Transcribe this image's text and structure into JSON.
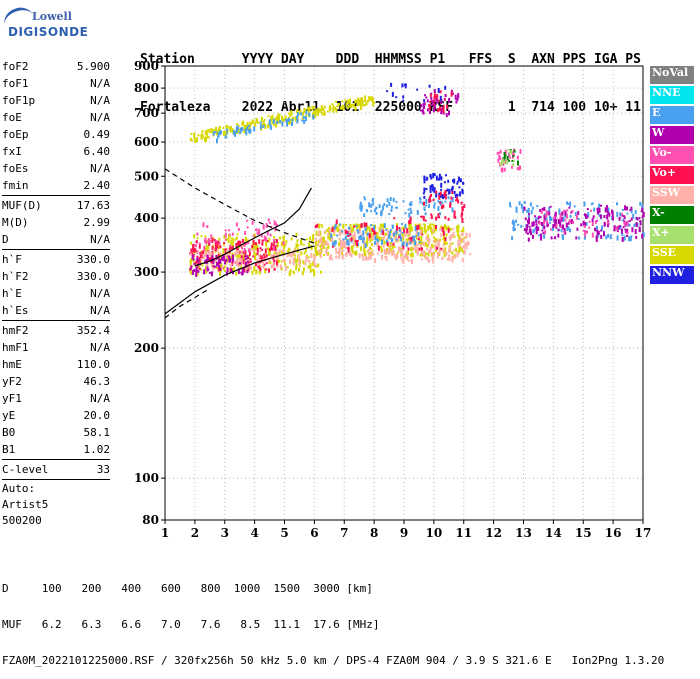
{
  "logo": {
    "line1": "Lowell",
    "line2": "DIGISONDE"
  },
  "header": {
    "columns": [
      "Station",
      "YYYY",
      "DAY",
      "DDD",
      "HHMMSS",
      "P1",
      "FFS",
      "S",
      "AXN",
      "PPS",
      "IGA",
      "PS"
    ],
    "values": [
      "Fortaleza",
      "2022",
      "Abr11",
      "101",
      "225000",
      "RSF",
      "",
      "1",
      "714",
      "100",
      "10+",
      "11"
    ]
  },
  "params": [
    {
      "label": "foF2",
      "value": "5.900"
    },
    {
      "label": "foF1",
      "value": "N/A"
    },
    {
      "label": "foF1p",
      "value": "N/A"
    },
    {
      "label": "foE",
      "value": "N/A"
    },
    {
      "label": "foEp",
      "value": "0.49"
    },
    {
      "label": "fxI",
      "value": "6.40"
    },
    {
      "label": "foEs",
      "value": "N/A"
    },
    {
      "label": "fmin",
      "value": "2.40"
    },
    {
      "sep": true
    },
    {
      "label": "MUF(D)",
      "value": "17.63"
    },
    {
      "label": "M(D)",
      "value": "2.99"
    },
    {
      "label": "D",
      "value": "N/A"
    },
    {
      "sep": true
    },
    {
      "label": "h`F",
      "value": "330.0"
    },
    {
      "label": "h`F2",
      "value": "330.0"
    },
    {
      "label": "h`E",
      "value": "N/A"
    },
    {
      "label": "h`Es",
      "value": "N/A"
    },
    {
      "sep": true
    },
    {
      "label": "hmF2",
      "value": "352.4"
    },
    {
      "label": "hmF1",
      "value": "N/A"
    },
    {
      "label": "hmE",
      "value": "110.0"
    },
    {
      "label": "yF2",
      "value": "46.3"
    },
    {
      "label": "yF1",
      "value": "N/A"
    },
    {
      "label": "yE",
      "value": "20.0"
    },
    {
      "label": "B0",
      "value": "58.1"
    },
    {
      "label": "B1",
      "value": "1.02"
    },
    {
      "sep": true
    },
    {
      "label": "C-level",
      "value": "33"
    },
    {
      "sep": true
    },
    {
      "text": "Auto:"
    },
    {
      "text": "Artist5"
    },
    {
      "text": "500200"
    }
  ],
  "legend": [
    {
      "label": "NoVal",
      "color": "#808080"
    },
    {
      "label": "NNE",
      "color": "#00e5ee"
    },
    {
      "label": "E",
      "color": "#4aa0f0"
    },
    {
      "label": "W",
      "color": "#b000b0"
    },
    {
      "label": "Vo-",
      "color": "#ff4fb0"
    },
    {
      "label": "Vo+",
      "color": "#ff1050"
    },
    {
      "label": "SSW",
      "color": "#ffb0a8"
    },
    {
      "label": "X-",
      "color": "#008000"
    },
    {
      "label": "X+",
      "color": "#a8e070"
    },
    {
      "label": "SSE",
      "color": "#d8d800"
    },
    {
      "label": "NNW",
      "color": "#2020e0"
    }
  ],
  "footer": {
    "d_label": "D",
    "d_values": [
      "100",
      "200",
      "400",
      "600",
      "800",
      "1000",
      "1500",
      "3000"
    ],
    "d_unit": "[km]",
    "muf_label": "MUF",
    "muf_values": [
      "6.2",
      "6.3",
      "6.6",
      "7.0",
      "7.6",
      "8.5",
      "11.1",
      "17.6"
    ],
    "muf_unit": "[MHz]",
    "file_line": "FZA0M_2022101225000.RSF / 320fx256h 50 kHz 5.0 km / DPS-4 FZA0M 904 / 3.9 S 321.6 E   Ion2Png 1.3.20"
  },
  "chart_data": {
    "type": "scatter",
    "xlim": [
      1,
      17
    ],
    "ylim": [
      80,
      900
    ],
    "y_scale": "log",
    "x_ticks": [
      1,
      2,
      3,
      4,
      5,
      6,
      7,
      8,
      9,
      10,
      11,
      12,
      13,
      14,
      15,
      16,
      17
    ],
    "y_ticks": [
      80,
      100,
      200,
      300,
      400,
      500,
      600,
      700,
      800,
      900
    ],
    "grid": true,
    "legend_position": "right",
    "clusters": [
      {
        "name": "F-trace",
        "color": "#d8d800",
        "x": [
          1.8,
          6.3
        ],
        "y": [
          300,
          370
        ],
        "n": 260
      },
      {
        "name": "F-trace",
        "color": "#ff1050",
        "x": [
          1.8,
          4.8
        ],
        "y": [
          305,
          360
        ],
        "n": 160
      },
      {
        "name": "F-trace",
        "color": "#ffb0a8",
        "x": [
          1.8,
          6.0
        ],
        "y": [
          310,
          340
        ],
        "n": 120
      },
      {
        "name": "F-trace",
        "color": "#b000b0",
        "x": [
          1.8,
          3.8
        ],
        "y": [
          300,
          330
        ],
        "n": 70
      },
      {
        "name": "F-trace",
        "color": "#ff4fb0",
        "x": [
          2.0,
          5.0
        ],
        "y": [
          340,
          400
        ],
        "n": 60
      },
      {
        "name": "spread",
        "color": "#d8d800",
        "x": [
          6.0,
          11.0
        ],
        "y": [
          330,
          390
        ],
        "n": 300
      },
      {
        "name": "spread",
        "color": "#ffb0a8",
        "x": [
          6.0,
          11.2
        ],
        "y": [
          320,
          380
        ],
        "n": 260
      },
      {
        "name": "spread",
        "color": "#4aa0f0",
        "x": [
          6.5,
          9.5
        ],
        "y": [
          350,
          390
        ],
        "n": 80
      },
      {
        "name": "spread",
        "color": "#ff1050",
        "x": [
          6.0,
          10.5
        ],
        "y": [
          340,
          410
        ],
        "n": 60
      },
      {
        "name": "upper",
        "color": "#4aa0f0",
        "x": [
          7.5,
          10.6
        ],
        "y": [
          410,
          450
        ],
        "n": 70
      },
      {
        "name": "upper",
        "color": "#2020e0",
        "x": [
          9.6,
          11.0
        ],
        "y": [
          450,
          510
        ],
        "n": 60
      },
      {
        "name": "upper",
        "color": "#ff1050",
        "x": [
          9.5,
          11.0
        ],
        "y": [
          400,
          470
        ],
        "n": 40
      },
      {
        "name": "low-freq",
        "color": "#4aa0f0",
        "x": [
          12.5,
          17.0
        ],
        "y": [
          360,
          440
        ],
        "n": 110
      },
      {
        "name": "low-freq",
        "color": "#b000b0",
        "x": [
          13.0,
          17.0
        ],
        "y": [
          360,
          430
        ],
        "n": 160
      },
      {
        "name": "low-freq",
        "color": "#ff4fb0",
        "x": [
          13.5,
          16.5
        ],
        "y": [
          370,
          420
        ],
        "n": 40
      },
      {
        "name": "second-hop",
        "color": "#d8d800",
        "x": [
          1.8,
          8.0
        ],
        "y": [
          615,
          760
        ],
        "n": 240,
        "slope": true
      },
      {
        "name": "second-hop",
        "color": "#4aa0f0",
        "x": [
          2.5,
          6.0
        ],
        "y": [
          620,
          700
        ],
        "n": 60,
        "slope": true
      },
      {
        "name": "high",
        "color": "#b000b0",
        "x": [
          9.5,
          10.8
        ],
        "y": [
          700,
          810
        ],
        "n": 40
      },
      {
        "name": "high",
        "color": "#ff1050",
        "x": [
          9.8,
          10.6
        ],
        "y": [
          710,
          800
        ],
        "n": 20
      },
      {
        "name": "high",
        "color": "#2020e0",
        "x": [
          8.0,
          10.5
        ],
        "y": [
          750,
          830
        ],
        "n": 15
      },
      {
        "name": "mid",
        "color": "#ff4fb0",
        "x": [
          12.1,
          12.9
        ],
        "y": [
          520,
          580
        ],
        "n": 30
      },
      {
        "name": "mid",
        "color": "#008000",
        "x": [
          12.2,
          12.8
        ],
        "y": [
          540,
          580
        ],
        "n": 12
      },
      {
        "name": "mid",
        "color": "#a8e070",
        "x": [
          12.2,
          12.8
        ],
        "y": [
          530,
          580
        ],
        "n": 10
      }
    ],
    "profile_curve": {
      "x": [
        2.0,
        2.5,
        3.0,
        3.5,
        4.0,
        4.5,
        5.0,
        5.5,
        5.9
      ],
      "y": [
        310,
        318,
        330,
        345,
        360,
        375,
        390,
        420,
        470
      ]
    },
    "model_curve_solid": {
      "x": [
        1.0,
        2.0,
        3.0,
        4.0,
        5.0,
        6.0
      ],
      "y": [
        240,
        270,
        295,
        315,
        330,
        345
      ]
    },
    "model_curve_dashed_upper": {
      "x": [
        1.0,
        2.0,
        3.0,
        4.0,
        5.0,
        6.0
      ],
      "y": [
        520,
        470,
        430,
        395,
        370,
        350
      ]
    },
    "model_curve_dashed_lower": {
      "x": [
        1.0,
        1.5,
        2.0,
        2.5
      ],
      "y": [
        235,
        250,
        262,
        275
      ]
    }
  }
}
